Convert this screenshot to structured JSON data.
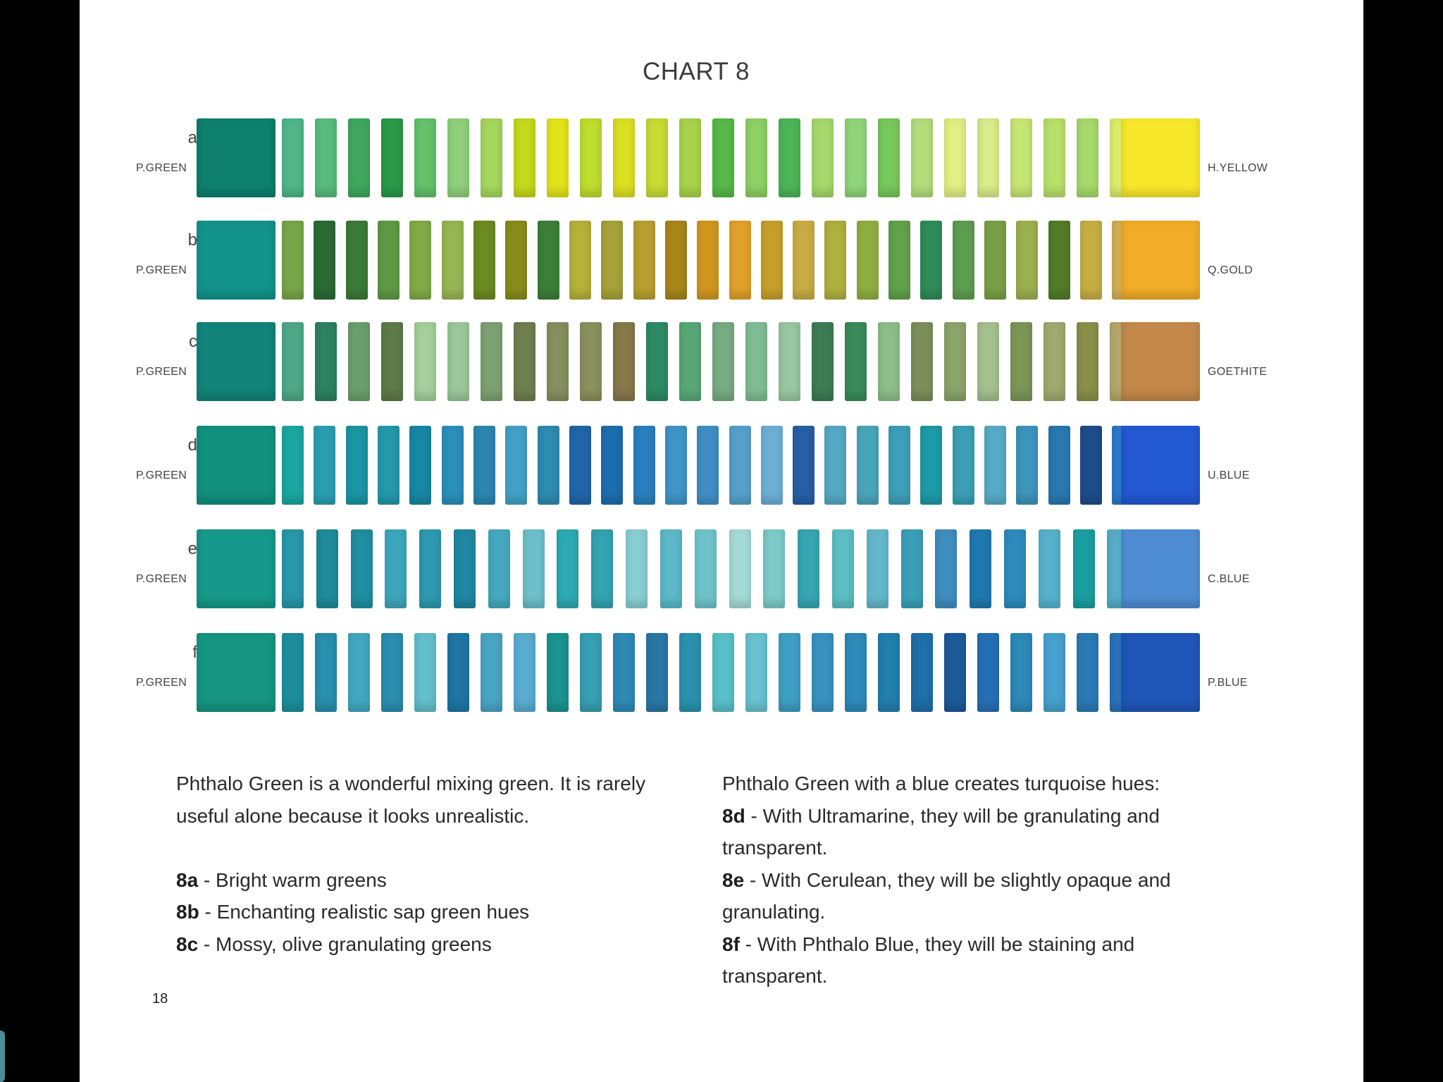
{
  "chart": {
    "title": "CHART 8",
    "rows": [
      {
        "letter": "a",
        "left_label": "P.GREEN",
        "right_label": "H.YELLOW",
        "start_color": "#0f7f6e",
        "end_color": "#f8e82a",
        "mixes": [
          "#4fb78a",
          "#57bd7e",
          "#3ea85e",
          "#2a9a48",
          "#63c26a",
          "#8fd07a",
          "#a5d85c",
          "#c4d91c",
          "#e2e41a",
          "#bedd2e",
          "#dbe022",
          "#c7db34",
          "#a7d44a",
          "#57b947",
          "#8dd064",
          "#4cb557",
          "#a6d86c",
          "#90d57b",
          "#78c95c",
          "#b3de7a",
          "#e1ef83",
          "#d8ec8a",
          "#c6e674",
          "#b8e06a",
          "#a8d96a",
          "#dceb6e",
          "#d9e21e",
          "#e4ec62"
        ]
      },
      {
        "letter": "b",
        "left_label": "P.GREEN",
        "right_label": "Q.GOLD",
        "start_color": "#13938a",
        "end_color": "#f1ac28",
        "mixes": [
          "#78a64a",
          "#2b6b34",
          "#3b7b38",
          "#5f9a44",
          "#82ab47",
          "#97b653",
          "#6c8b22",
          "#8a8c1c",
          "#3c7f39",
          "#b5b23a",
          "#a5a33a",
          "#b8a030",
          "#a8861a",
          "#d29720",
          "#e0a22a",
          "#c79f2a",
          "#c9ad44",
          "#b0b040",
          "#8fb040",
          "#61a24a",
          "#2f8c58",
          "#5e9e50",
          "#7aa046",
          "#9db04f",
          "#527c27",
          "#c7ae44",
          "#d3b056",
          "#d9a936",
          "#e5c560"
        ]
      },
      {
        "letter": "c",
        "left_label": "P.GREEN",
        "right_label": "GOETHITE",
        "start_color": "#128479",
        "end_color": "#c4894a",
        "mixes": [
          "#4fa889",
          "#2d8263",
          "#6c9f6e",
          "#5e7a47",
          "#a3d09b",
          "#9ac89a",
          "#7da271",
          "#6f7f4f",
          "#86905e",
          "#8a905e",
          "#87784b",
          "#2c8b65",
          "#58a876",
          "#78ac83",
          "#7fbc94",
          "#98c8a2",
          "#3d7c54",
          "#3a8b5b",
          "#8dbe89",
          "#7b8f5b",
          "#8aa56a",
          "#a4c08c",
          "#7c9658",
          "#a0aa6e",
          "#8a8f4a",
          "#b5a76b",
          "#9c7c3e",
          "#c4a972"
        ]
      },
      {
        "letter": "d",
        "left_label": "P.GREEN",
        "right_label": "U.BLUE",
        "start_color": "#12907e",
        "end_color": "#2358d3",
        "mixes": [
          "#1ba7a2",
          "#2b9fb2",
          "#1b95a3",
          "#2399ab",
          "#1887a5",
          "#2b8fbc",
          "#2c86b0",
          "#43a1c6",
          "#2e8bb2",
          "#2166a8",
          "#1d6eae",
          "#2a7fbe",
          "#3f95c8",
          "#3f8fc4",
          "#57a0cc",
          "#6cb0d6",
          "#275fa6",
          "#56a9c5",
          "#49a6ba",
          "#3e9fb8",
          "#1d9ba8",
          "#3aa0b6",
          "#56acc8",
          "#3d94bc",
          "#2978b0",
          "#1e4d8a",
          "#2d79c6",
          "#6ba3dc",
          "#6aaed8"
        ]
      },
      {
        "letter": "e",
        "left_label": "P.GREEN",
        "right_label": "C.BLUE",
        "start_color": "#16988a",
        "end_color": "#4f8dd3",
        "mixes": [
          "#2996a9",
          "#1f8b9b",
          "#208fa1",
          "#3da6bd",
          "#2d9ab1",
          "#2088a2",
          "#45a9c0",
          "#6dc0cc",
          "#2eaab4",
          "#34a3b2",
          "#88cfd2",
          "#5bb9c8",
          "#6fc4c9",
          "#a4dbd6",
          "#7ccbc8",
          "#36a7b2",
          "#5cbfc4",
          "#64b8cc",
          "#3aa0b8",
          "#3e8ebe",
          "#1f79b0",
          "#2d8cbd",
          "#56b2cc",
          "#1a9fa0",
          "#56adc8",
          "#5aa8cf",
          "#5b9fd8"
        ]
      },
      {
        "letter": "f",
        "left_label": "P.GREEN",
        "right_label": "P.BLUE",
        "start_color": "#169582",
        "end_color": "#1f56b8",
        "mixes": [
          "#1e8e9e",
          "#288fae",
          "#41a8c2",
          "#2b8db0",
          "#62bfcc",
          "#1e76a4",
          "#49a5c4",
          "#5aadd0",
          "#1b9390",
          "#37a0b2",
          "#2d8ab6",
          "#2a77a6",
          "#2a92b0",
          "#58c0c8",
          "#68c2d0",
          "#3d9fc4",
          "#3892c0",
          "#2e8aba",
          "#217fae",
          "#1f6fa8",
          "#1d5a9a",
          "#266fb4",
          "#2d8ab8",
          "#48a0d0",
          "#2b7ab5",
          "#2a72b8",
          "#2f7ec4",
          "#4d94d4"
        ]
      }
    ]
  },
  "text": {
    "left": {
      "intro_line1": "Phthalo Green is a wonderful mixing green. It is rarely",
      "intro_line2": "useful alone because it looks unrealistic.",
      "items": [
        {
          "code": "8a",
          "text": " - Bright warm greens"
        },
        {
          "code": "8b",
          "text": " - Enchanting realistic sap green hues"
        },
        {
          "code": "8c",
          "text": " - Mossy, olive granulating greens"
        }
      ]
    },
    "right": {
      "intro": "Phthalo Green with a blue creates turquoise hues:",
      "items": [
        {
          "code": "8d",
          "line1": " - With Ultramarine, they will be granulating and",
          "line2": "transparent."
        },
        {
          "code": "8e",
          "line1": " - With Cerulean, they will be slightly opaque and",
          "line2": "granulating."
        },
        {
          "code": "8f",
          "line1": " - With Phthalo Blue, they will be staining and",
          "line2": "transparent."
        }
      ]
    }
  },
  "page_number": "18"
}
